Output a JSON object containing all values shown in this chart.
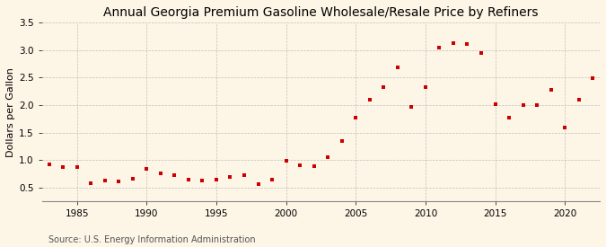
{
  "title": "Annual Georgia Premium Gasoline Wholesale/Resale Price by Refiners",
  "ylabel": "Dollars per Gallon",
  "source": "Source: U.S. Energy Information Administration",
  "background_color": "#fdf5e6",
  "years": [
    1983,
    1984,
    1985,
    1986,
    1987,
    1988,
    1989,
    1990,
    1991,
    1992,
    1993,
    1994,
    1995,
    1996,
    1997,
    1998,
    1999,
    2000,
    2001,
    2002,
    2003,
    2004,
    2005,
    2006,
    2007,
    2008,
    2009,
    2010,
    2011,
    2012,
    2013,
    2014,
    2015,
    2016,
    2017,
    2018,
    2019,
    2020,
    2021,
    2022
  ],
  "values": [
    0.93,
    0.88,
    0.88,
    0.58,
    0.63,
    0.62,
    0.67,
    0.84,
    0.76,
    0.72,
    0.65,
    0.63,
    0.65,
    0.7,
    0.72,
    0.57,
    0.65,
    0.99,
    0.91,
    0.89,
    1.05,
    1.35,
    1.77,
    2.09,
    2.32,
    2.68,
    1.97,
    2.33,
    3.04,
    3.13,
    3.1,
    2.94,
    2.01,
    1.77,
    2.0,
    2.0,
    2.27,
    1.59,
    2.1,
    2.48
  ],
  "marker_color": "#cc0000",
  "marker_size": 3.5,
  "xlim": [
    1982.5,
    2022.5
  ],
  "ylim": [
    0.25,
    3.5
  ],
  "yticks": [
    0.5,
    1.0,
    1.5,
    2.0,
    2.5,
    3.0,
    3.5
  ],
  "xticks": [
    1985,
    1990,
    1995,
    2000,
    2005,
    2010,
    2015,
    2020
  ],
  "grid_color": "#aaaaaa",
  "title_fontsize": 10,
  "label_fontsize": 8,
  "tick_fontsize": 7.5,
  "source_fontsize": 7
}
